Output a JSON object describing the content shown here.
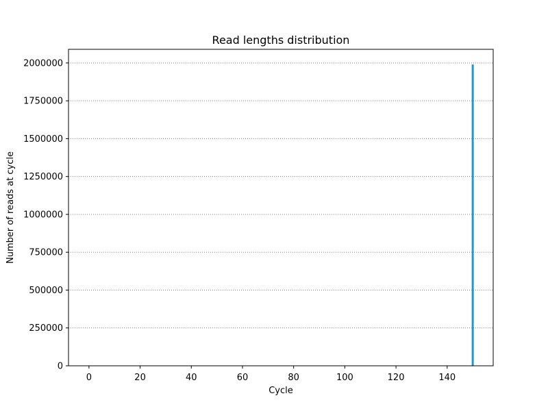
{
  "chart_data": {
    "type": "bar",
    "title": "Read lengths distribution",
    "xlabel": "Cycle",
    "ylabel": "Number of reads at cycle",
    "xlim": [
      -8,
      158
    ],
    "ylim": [
      0,
      2090000
    ],
    "xticks": [
      0,
      20,
      40,
      60,
      80,
      100,
      120,
      140
    ],
    "yticks": [
      0,
      250000,
      500000,
      750000,
      1000000,
      1250000,
      1500000,
      1750000,
      2000000
    ],
    "grid": {
      "y": true,
      "x": false,
      "style": "dotted"
    },
    "series": [
      {
        "color": "#1f9ac9",
        "points": [
          {
            "x": 150,
            "y": 1990000
          }
        ]
      }
    ]
  }
}
